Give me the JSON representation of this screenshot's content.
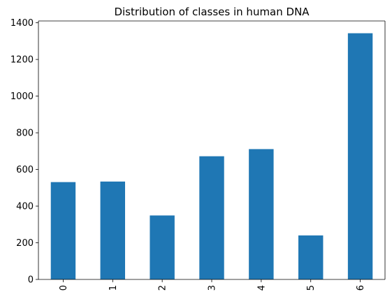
{
  "chart_data": {
    "type": "bar",
    "title": "Distribution of classes in human DNA",
    "xlabel": "",
    "ylabel": "",
    "categories": [
      "0",
      "1",
      "2",
      "3",
      "4",
      "5",
      "6"
    ],
    "values": [
      531,
      534,
      349,
      672,
      711,
      240,
      1343
    ],
    "ylim": [
      0,
      1410
    ],
    "yticks": [
      0,
      200,
      400,
      600,
      800,
      1000,
      1200,
      1400
    ],
    "grid": false,
    "legend": "none",
    "bar_color": "#1f77b4"
  }
}
